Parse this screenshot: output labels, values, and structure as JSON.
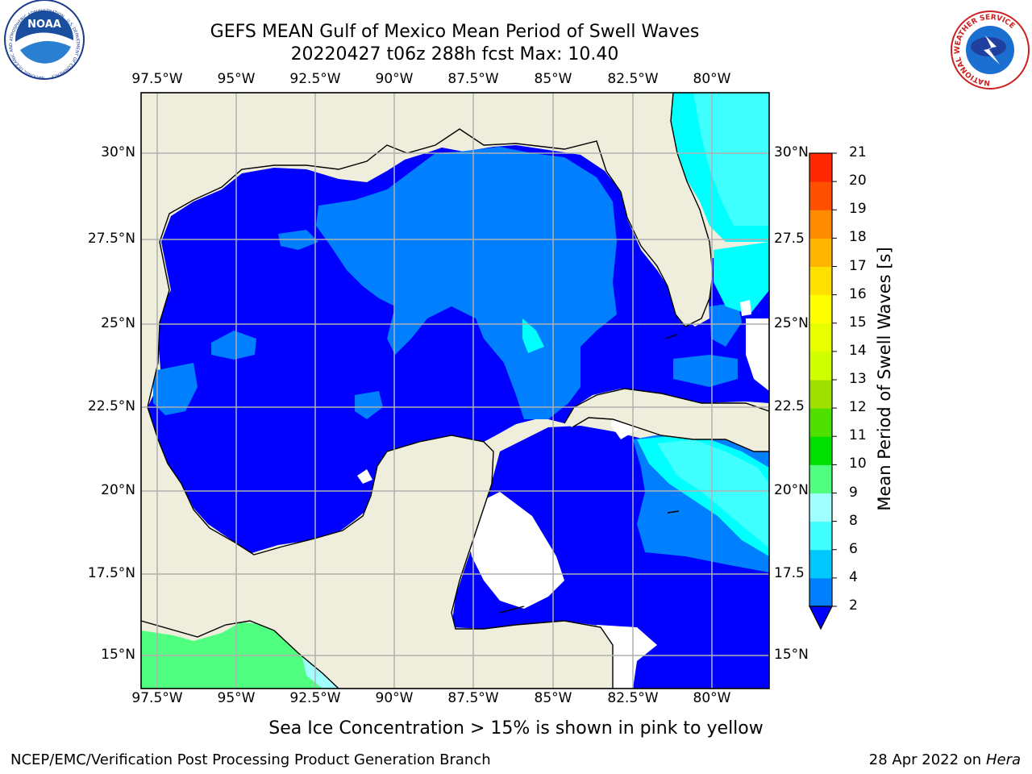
{
  "title": {
    "line1": "GEFS MEAN Gulf of Mexico Mean Period of Swell Waves",
    "line2": "20220427 t06z 288h fcst   Max: 10.40"
  },
  "map": {
    "lon_labels": [
      "97.5°W",
      "95°W",
      "92.5°W",
      "90°W",
      "87.5°W",
      "85°W",
      "82.5°W",
      "80°W"
    ],
    "lat_labels_left": [
      "30°N",
      "27.5°N",
      "25°N",
      "22.5°N",
      "20°N",
      "17.5°N",
      "15°N"
    ],
    "lat_labels_right": [
      "30°N",
      "27.5",
      "25°N",
      "22.5",
      "20°N",
      "17.5",
      "15°N"
    ]
  },
  "colorbar": {
    "label": "Mean Period of Swell Waves [s]",
    "ticks": [
      "2",
      "4",
      "6",
      "8",
      "9",
      "10",
      "11",
      "12",
      "13",
      "14",
      "15",
      "16",
      "17",
      "18",
      "19",
      "20",
      "21"
    ],
    "colors": [
      "#0080ff",
      "#00c8ff",
      "#40ffff",
      "#a0ffff",
      "#50ff80",
      "#00e000",
      "#50e000",
      "#a0e000",
      "#d0ff00",
      "#e8ff00",
      "#ffff00",
      "#ffe000",
      "#ffb400",
      "#ff8c00",
      "#ff5000",
      "#ff2800",
      "#ff0000"
    ],
    "extend_color": "#0000ff"
  },
  "logos": {
    "left": {
      "text": "NOAA",
      "ring_text": "NATIONAL OCEANIC AND ATMOSPHERIC ADMINISTRATION · U.S. DEPARTMENT OF COMMERCE"
    },
    "right": {
      "ring_text": "NATIONAL WEATHER SERVICE"
    }
  },
  "footer": {
    "note": "Sea Ice Concentration > 15% is shown in pink to yellow",
    "credit": "NCEP/EMC/Verification Post Processing Product Generation Branch",
    "date": "28 Apr 2022 on ",
    "machine": "Hera"
  }
}
